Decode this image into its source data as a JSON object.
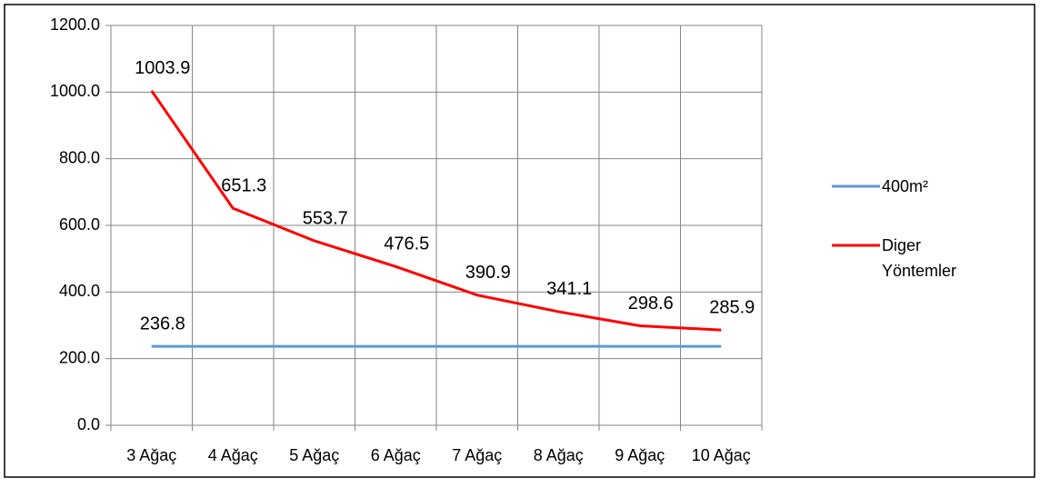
{
  "chart_data": {
    "type": "line",
    "categories": [
      "3 Ağaç",
      "4 Ağaç",
      "5 Ağaç",
      "6 Ağaç",
      "7 Ağaç",
      "8 Ağaç",
      "9 Ağaç",
      "10 Ağaç"
    ],
    "series": [
      {
        "name": "400m²",
        "color": "#5b9bd5",
        "values": [
          236.8,
          236.8,
          236.8,
          236.8,
          236.8,
          236.8,
          236.8,
          236.8
        ],
        "value_labels": [
          "236.8",
          null,
          null,
          null,
          null,
          null,
          null,
          null
        ]
      },
      {
        "name": "Diger Yöntemler",
        "color": "#ff0000",
        "values": [
          1003.9,
          651.3,
          553.7,
          476.5,
          390.9,
          341.1,
          298.6,
          285.9
        ]
      }
    ],
    "ylim": [
      0,
      1200
    ],
    "yticks": [
      {
        "value": 0,
        "label": "0.0"
      },
      {
        "value": 200,
        "label": "200.0"
      },
      {
        "value": 400,
        "label": "400.0"
      },
      {
        "value": 600,
        "label": "600.0"
      },
      {
        "value": 800,
        "label": "800.0"
      },
      {
        "value": 1000,
        "label": "1000.0"
      },
      {
        "value": 1200,
        "label": "1200.0"
      }
    ],
    "grid": true,
    "legend": "right"
  }
}
